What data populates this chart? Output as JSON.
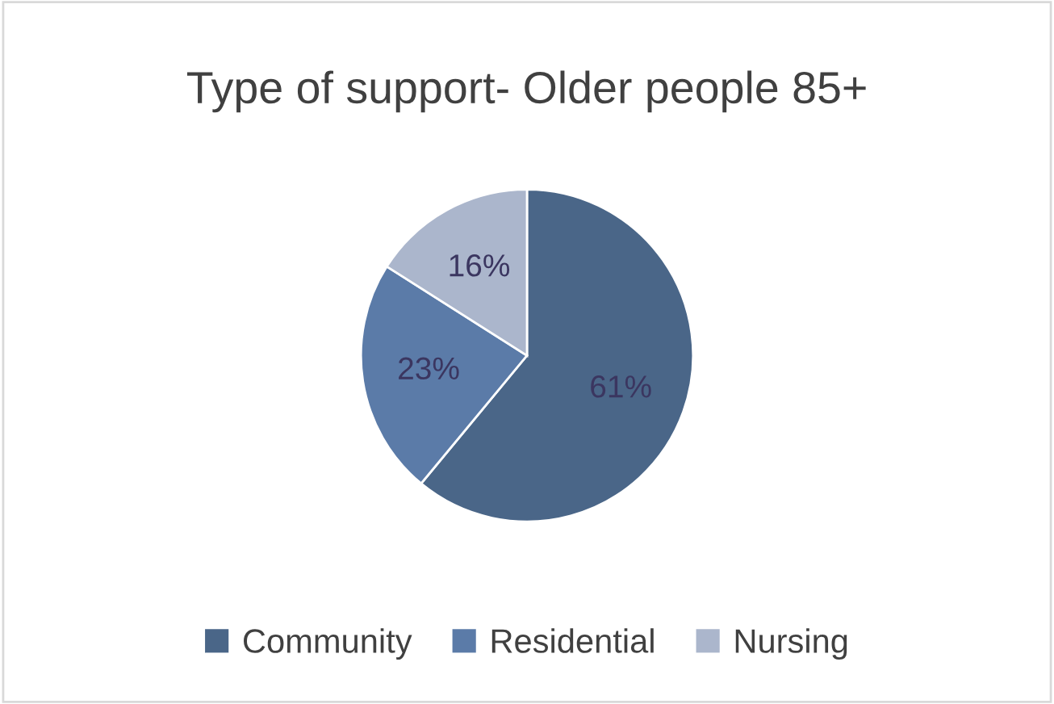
{
  "chart_data": {
    "type": "pie",
    "title": "Type of support- Older people 85+",
    "categories": [
      "Community",
      "Residential",
      "Nursing"
    ],
    "values": [
      61,
      23,
      16
    ],
    "colors": [
      "#4a6688",
      "#5b7ba8",
      "#abb6cc"
    ],
    "value_labels": [
      "61%",
      "23%",
      "16%"
    ],
    "legend": "bottom"
  }
}
